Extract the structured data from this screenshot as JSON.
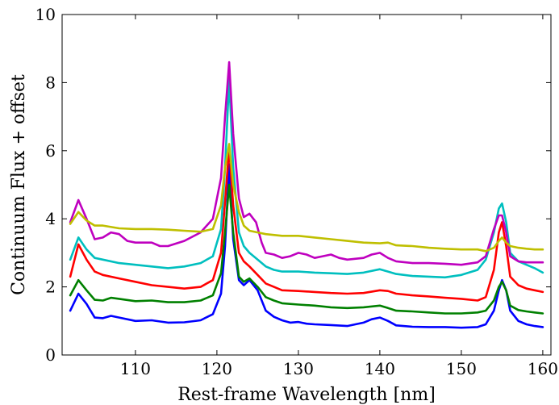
{
  "chart_data": {
    "type": "line",
    "title": "",
    "xlabel": "Rest-frame Wavelength [nm]",
    "ylabel": "Continuum Flux + offset",
    "xlim": [
      101,
      161
    ],
    "ylim": [
      0,
      10
    ],
    "x_ticks": [
      110,
      120,
      130,
      140,
      150,
      160
    ],
    "y_ticks": [
      0,
      2,
      4,
      6,
      8,
      10
    ],
    "grid": false,
    "legend": "none",
    "series": [
      {
        "color": "#0000ff",
        "points": [
          [
            102,
            1.3
          ],
          [
            103,
            1.8
          ],
          [
            104,
            1.5
          ],
          [
            105,
            1.1
          ],
          [
            106,
            1.08
          ],
          [
            107,
            1.15
          ],
          [
            108,
            1.1
          ],
          [
            110,
            1.0
          ],
          [
            112,
            1.02
          ],
          [
            114,
            0.95
          ],
          [
            116,
            0.96
          ],
          [
            118,
            1.02
          ],
          [
            119.5,
            1.2
          ],
          [
            120.5,
            1.8
          ],
          [
            121,
            3.2
          ],
          [
            121.5,
            5.6
          ],
          [
            122,
            3.4
          ],
          [
            122.7,
            2.2
          ],
          [
            123.3,
            2.05
          ],
          [
            124,
            2.2
          ],
          [
            125,
            1.9
          ],
          [
            126,
            1.3
          ],
          [
            127,
            1.12
          ],
          [
            128,
            1.02
          ],
          [
            129,
            0.95
          ],
          [
            130,
            0.97
          ],
          [
            131,
            0.92
          ],
          [
            132,
            0.9
          ],
          [
            134,
            0.88
          ],
          [
            136,
            0.85
          ],
          [
            138,
            0.95
          ],
          [
            139,
            1.05
          ],
          [
            140,
            1.1
          ],
          [
            141,
            1.0
          ],
          [
            142,
            0.87
          ],
          [
            144,
            0.83
          ],
          [
            146,
            0.82
          ],
          [
            148,
            0.82
          ],
          [
            150,
            0.8
          ],
          [
            152,
            0.82
          ],
          [
            153,
            0.9
          ],
          [
            154,
            1.3
          ],
          [
            154.6,
            1.9
          ],
          [
            155,
            2.2
          ],
          [
            155.5,
            1.9
          ],
          [
            156,
            1.3
          ],
          [
            157,
            1.0
          ],
          [
            158,
            0.9
          ],
          [
            159,
            0.85
          ],
          [
            160,
            0.82
          ]
        ]
      },
      {
        "color": "#008000",
        "points": [
          [
            102,
            1.75
          ],
          [
            103,
            2.2
          ],
          [
            104,
            1.9
          ],
          [
            105,
            1.62
          ],
          [
            106,
            1.6
          ],
          [
            107,
            1.68
          ],
          [
            108,
            1.65
          ],
          [
            110,
            1.58
          ],
          [
            112,
            1.6
          ],
          [
            114,
            1.55
          ],
          [
            116,
            1.55
          ],
          [
            118,
            1.6
          ],
          [
            119.5,
            1.75
          ],
          [
            120.5,
            2.4
          ],
          [
            121,
            3.6
          ],
          [
            121.5,
            5.0
          ],
          [
            122,
            3.6
          ],
          [
            122.7,
            2.3
          ],
          [
            123.3,
            2.15
          ],
          [
            124,
            2.25
          ],
          [
            125,
            2.0
          ],
          [
            126,
            1.7
          ],
          [
            127,
            1.6
          ],
          [
            128,
            1.52
          ],
          [
            130,
            1.48
          ],
          [
            132,
            1.45
          ],
          [
            134,
            1.4
          ],
          [
            136,
            1.38
          ],
          [
            138,
            1.4
          ],
          [
            140,
            1.45
          ],
          [
            141,
            1.38
          ],
          [
            142,
            1.3
          ],
          [
            144,
            1.28
          ],
          [
            146,
            1.25
          ],
          [
            148,
            1.22
          ],
          [
            150,
            1.22
          ],
          [
            152,
            1.25
          ],
          [
            153,
            1.3
          ],
          [
            154,
            1.6
          ],
          [
            154.6,
            2.0
          ],
          [
            155,
            2.15
          ],
          [
            155.5,
            1.9
          ],
          [
            156,
            1.45
          ],
          [
            157,
            1.32
          ],
          [
            158,
            1.28
          ],
          [
            159,
            1.25
          ],
          [
            160,
            1.22
          ]
        ]
      },
      {
        "color": "#ff0000",
        "points": [
          [
            102,
            2.3
          ],
          [
            103,
            3.25
          ],
          [
            104,
            2.8
          ],
          [
            105,
            2.45
          ],
          [
            106,
            2.35
          ],
          [
            108,
            2.25
          ],
          [
            110,
            2.15
          ],
          [
            112,
            2.05
          ],
          [
            114,
            2.0
          ],
          [
            116,
            1.95
          ],
          [
            118,
            2.0
          ],
          [
            119.5,
            2.2
          ],
          [
            120.5,
            3.0
          ],
          [
            121,
            4.5
          ],
          [
            121.5,
            6.1
          ],
          [
            122,
            4.4
          ],
          [
            122.7,
            3.0
          ],
          [
            123.3,
            2.75
          ],
          [
            124,
            2.6
          ],
          [
            125,
            2.35
          ],
          [
            126,
            2.1
          ],
          [
            127,
            2.0
          ],
          [
            128,
            1.9
          ],
          [
            130,
            1.88
          ],
          [
            132,
            1.85
          ],
          [
            134,
            1.82
          ],
          [
            136,
            1.8
          ],
          [
            138,
            1.82
          ],
          [
            140,
            1.9
          ],
          [
            141,
            1.88
          ],
          [
            142,
            1.8
          ],
          [
            144,
            1.75
          ],
          [
            146,
            1.72
          ],
          [
            148,
            1.68
          ],
          [
            150,
            1.65
          ],
          [
            152,
            1.6
          ],
          [
            153,
            1.7
          ],
          [
            154,
            2.5
          ],
          [
            154.6,
            3.6
          ],
          [
            155,
            3.9
          ],
          [
            155.5,
            3.2
          ],
          [
            156,
            2.3
          ],
          [
            157,
            2.05
          ],
          [
            158,
            1.95
          ],
          [
            159,
            1.9
          ],
          [
            160,
            1.85
          ]
        ]
      },
      {
        "color": "#00bfbf",
        "points": [
          [
            102,
            2.8
          ],
          [
            103,
            3.45
          ],
          [
            104,
            3.1
          ],
          [
            105,
            2.85
          ],
          [
            106,
            2.8
          ],
          [
            108,
            2.7
          ],
          [
            110,
            2.65
          ],
          [
            112,
            2.6
          ],
          [
            114,
            2.55
          ],
          [
            116,
            2.6
          ],
          [
            118,
            2.7
          ],
          [
            119.5,
            2.9
          ],
          [
            120.5,
            3.7
          ],
          [
            121,
            5.5
          ],
          [
            121.5,
            8.1
          ],
          [
            122,
            5.5
          ],
          [
            122.7,
            3.6
          ],
          [
            123.3,
            3.2
          ],
          [
            124,
            3.0
          ],
          [
            125,
            2.8
          ],
          [
            126,
            2.6
          ],
          [
            127,
            2.5
          ],
          [
            128,
            2.45
          ],
          [
            130,
            2.45
          ],
          [
            132,
            2.42
          ],
          [
            134,
            2.4
          ],
          [
            136,
            2.38
          ],
          [
            138,
            2.42
          ],
          [
            140,
            2.52
          ],
          [
            141,
            2.45
          ],
          [
            142,
            2.38
          ],
          [
            144,
            2.32
          ],
          [
            146,
            2.3
          ],
          [
            148,
            2.28
          ],
          [
            150,
            2.35
          ],
          [
            152,
            2.5
          ],
          [
            153,
            2.8
          ],
          [
            154,
            3.6
          ],
          [
            154.6,
            4.3
          ],
          [
            155,
            4.45
          ],
          [
            155.5,
            3.9
          ],
          [
            156,
            3.0
          ],
          [
            157,
            2.75
          ],
          [
            158,
            2.65
          ],
          [
            159,
            2.55
          ],
          [
            160,
            2.42
          ]
        ]
      },
      {
        "color": "#bf00bf",
        "points": [
          [
            102,
            3.9
          ],
          [
            103,
            4.55
          ],
          [
            104,
            4.0
          ],
          [
            105,
            3.4
          ],
          [
            106,
            3.45
          ],
          [
            107,
            3.6
          ],
          [
            108,
            3.55
          ],
          [
            109,
            3.35
          ],
          [
            110,
            3.3
          ],
          [
            112,
            3.3
          ],
          [
            113,
            3.2
          ],
          [
            114,
            3.2
          ],
          [
            116,
            3.35
          ],
          [
            118,
            3.6
          ],
          [
            119.5,
            4.0
          ],
          [
            120.5,
            5.2
          ],
          [
            121,
            7.0
          ],
          [
            121.5,
            8.6
          ],
          [
            122,
            6.5
          ],
          [
            122.7,
            4.6
          ],
          [
            123.3,
            4.05
          ],
          [
            124,
            4.15
          ],
          [
            124.8,
            3.9
          ],
          [
            125.5,
            3.3
          ],
          [
            126,
            3.0
          ],
          [
            127,
            2.95
          ],
          [
            128,
            2.85
          ],
          [
            129,
            2.9
          ],
          [
            130,
            3.0
          ],
          [
            131,
            2.95
          ],
          [
            132,
            2.85
          ],
          [
            133,
            2.9
          ],
          [
            134,
            2.95
          ],
          [
            135,
            2.85
          ],
          [
            136,
            2.8
          ],
          [
            138,
            2.85
          ],
          [
            139,
            2.95
          ],
          [
            140,
            3.0
          ],
          [
            141,
            2.85
          ],
          [
            142,
            2.75
          ],
          [
            144,
            2.7
          ],
          [
            146,
            2.7
          ],
          [
            148,
            2.68
          ],
          [
            150,
            2.65
          ],
          [
            152,
            2.72
          ],
          [
            153,
            2.9
          ],
          [
            154,
            3.7
          ],
          [
            154.6,
            4.1
          ],
          [
            155,
            4.1
          ],
          [
            155.5,
            3.6
          ],
          [
            156,
            2.9
          ],
          [
            157,
            2.75
          ],
          [
            158,
            2.72
          ],
          [
            159,
            2.72
          ],
          [
            160,
            2.72
          ]
        ]
      },
      {
        "color": "#bfbf00",
        "points": [
          [
            102,
            3.85
          ],
          [
            103,
            4.2
          ],
          [
            104,
            3.95
          ],
          [
            105,
            3.8
          ],
          [
            106,
            3.8
          ],
          [
            108,
            3.72
          ],
          [
            110,
            3.7
          ],
          [
            112,
            3.7
          ],
          [
            114,
            3.68
          ],
          [
            116,
            3.65
          ],
          [
            118,
            3.62
          ],
          [
            119.5,
            3.7
          ],
          [
            120.5,
            4.4
          ],
          [
            121,
            5.5
          ],
          [
            121.5,
            6.2
          ],
          [
            122,
            5.0
          ],
          [
            122.7,
            4.2
          ],
          [
            123.3,
            3.8
          ],
          [
            124,
            3.65
          ],
          [
            125,
            3.6
          ],
          [
            126,
            3.55
          ],
          [
            128,
            3.5
          ],
          [
            130,
            3.5
          ],
          [
            132,
            3.45
          ],
          [
            134,
            3.4
          ],
          [
            136,
            3.35
          ],
          [
            138,
            3.3
          ],
          [
            140,
            3.28
          ],
          [
            141,
            3.3
          ],
          [
            142,
            3.22
          ],
          [
            144,
            3.2
          ],
          [
            146,
            3.15
          ],
          [
            148,
            3.12
          ],
          [
            150,
            3.1
          ],
          [
            152,
            3.1
          ],
          [
            153,
            3.05
          ],
          [
            154,
            3.15
          ],
          [
            154.6,
            3.35
          ],
          [
            155,
            3.45
          ],
          [
            155.5,
            3.3
          ],
          [
            156,
            3.2
          ],
          [
            157,
            3.15
          ],
          [
            158,
            3.12
          ],
          [
            159,
            3.1
          ],
          [
            160,
            3.1
          ]
        ]
      }
    ]
  }
}
